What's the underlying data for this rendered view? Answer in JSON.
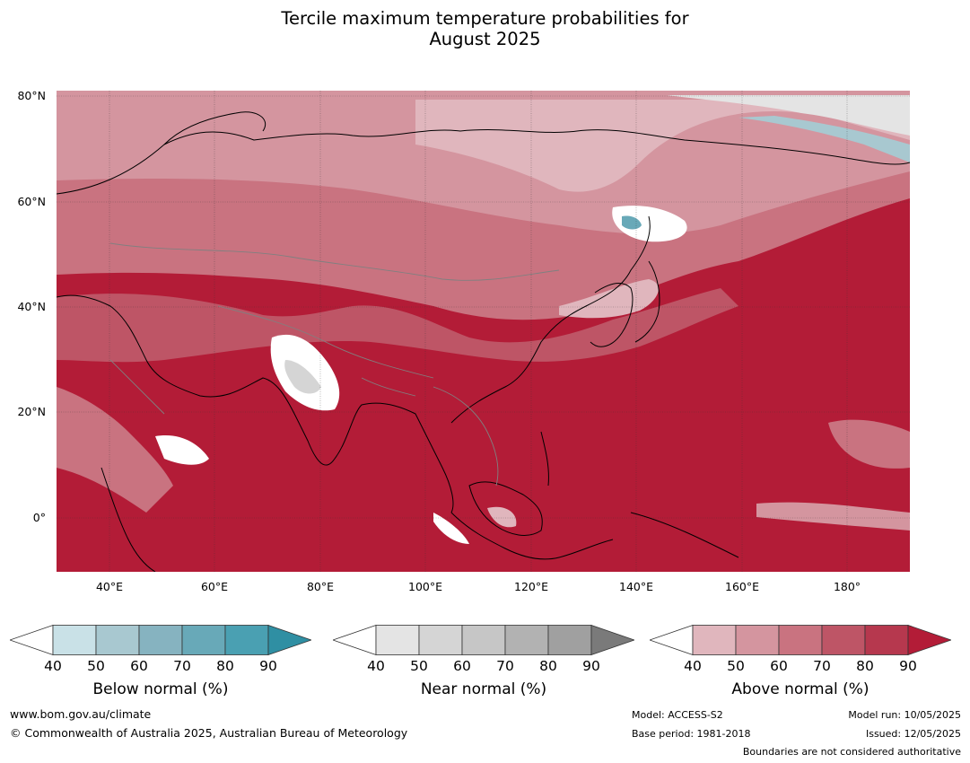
{
  "title": {
    "line1": "Tercile maximum temperature probabilities for",
    "line2": "August 2025"
  },
  "map": {
    "lat_labels": [
      "80°N",
      "60°N",
      "40°N",
      "20°N",
      "0°"
    ],
    "lon_labels": [
      "40°E",
      "60°E",
      "80°E",
      "100°E",
      "120°E",
      "140°E",
      "160°E",
      "180°"
    ],
    "dominant_colour": "#b31c37"
  },
  "colorbars": [
    {
      "label": "Below normal (%)",
      "ticks": [
        "40",
        "50",
        "60",
        "70",
        "80",
        "90"
      ],
      "colors": [
        "#ffffff",
        "#c9e1e7",
        "#a8c8d0",
        "#86b3c0",
        "#68a9b8",
        "#4aa0b2",
        "#2f8fa3"
      ]
    },
    {
      "label": "Near normal (%)",
      "ticks": [
        "40",
        "50",
        "60",
        "70",
        "80",
        "90"
      ],
      "colors": [
        "#ffffff",
        "#e4e4e4",
        "#d5d5d5",
        "#c6c6c6",
        "#b2b2b2",
        "#a0a0a0",
        "#7a7a7a"
      ]
    },
    {
      "label": "Above normal (%)",
      "ticks": [
        "40",
        "50",
        "60",
        "70",
        "80",
        "90"
      ],
      "colors": [
        "#ffffff",
        "#e0b6bd",
        "#d4959f",
        "#c97380",
        "#be5566",
        "#b6384e",
        "#b31c37"
      ]
    }
  ],
  "footer": {
    "website": "www.bom.gov.au/climate",
    "copyright": "© Commonwealth of Australia 2025, Australian Bureau of Meteorology",
    "model": "Model: ACCESS-S2",
    "base_period": "Base period: 1981-2018",
    "model_run": "Model run: 10/05/2025",
    "issued": "Issued: 12/05/2025",
    "boundaries": "Boundaries are not considered authoritative"
  }
}
